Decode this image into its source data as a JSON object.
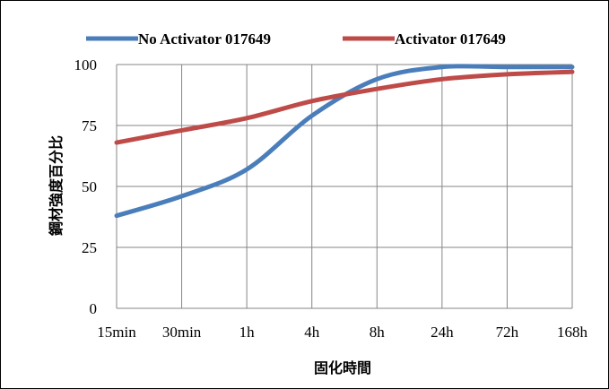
{
  "chart_data": {
    "type": "line",
    "xlabel": "固化時間",
    "ylabel": "鋼材強度百分比",
    "categories": [
      "15min",
      "30min",
      "1h",
      "4h",
      "8h",
      "24h",
      "72h",
      "168h"
    ],
    "ylim": [
      0,
      100
    ],
    "yticks": [
      0,
      25,
      50,
      75,
      100
    ],
    "grid": true,
    "legend_position": "top",
    "series": [
      {
        "name": "No Activator 017649",
        "color": "#4A7EBB",
        "values": [
          38,
          46,
          57,
          79,
          94,
          99,
          99,
          99
        ]
      },
      {
        "name": "Activator 017649",
        "color": "#BE4B48",
        "values": [
          68,
          73,
          78,
          85,
          90,
          94,
          96,
          97
        ]
      }
    ]
  }
}
